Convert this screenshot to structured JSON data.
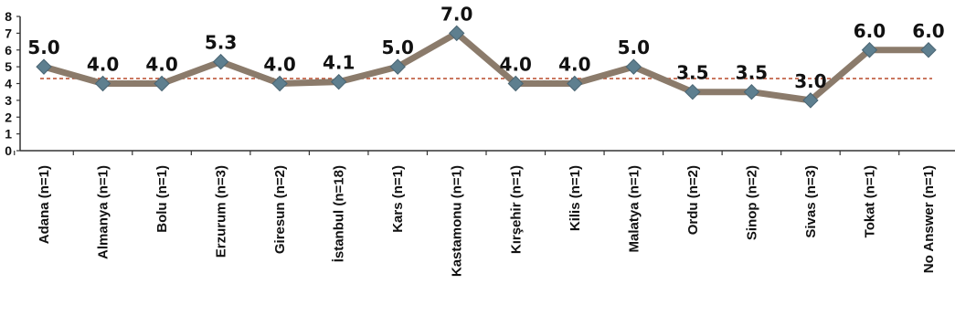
{
  "chart_data": {
    "type": "line",
    "categories": [
      "Adana (n=1)",
      "Almanya (n=1)",
      "Bolu (n=1)",
      "Erzurum (n=3)",
      "Giresun (n=2)",
      "İstanbul (n=18)",
      "Kars (n=1)",
      "Kastamonu (n=1)",
      "Kırşehir (n=1)",
      "Kilis (n=1)",
      "Malatya (n=1)",
      "Ordu (n=2)",
      "Sinop (n=2)",
      "Sivas (n=3)",
      "Tokat (n=1)",
      "No Answer (n=1)"
    ],
    "series": [
      {
        "values": [
          5.0,
          4.0,
          4.0,
          5.3,
          4.0,
          4.1,
          5.0,
          7.0,
          4.0,
          4.0,
          5.0,
          3.5,
          3.5,
          3.0,
          6.0,
          6.0
        ]
      }
    ],
    "data_labels": [
      "5.0",
      "4.0",
      "4.0",
      "5.3",
      "4.0",
      "4.1",
      "5.0",
      "7.0",
      "4.0",
      "4.0",
      "5.0",
      "3.5",
      "3.5",
      "3.0",
      "6.0",
      "6.0"
    ],
    "reference_line": 4.3,
    "yticks": [
      "0",
      "1",
      "2",
      "3",
      "4",
      "5",
      "6",
      "7",
      "8"
    ],
    "ylim": [
      0,
      8
    ],
    "title": "",
    "xlabel": "",
    "ylabel": "",
    "grid": false,
    "legend": "none",
    "colors": {
      "line": "#8b7b6b",
      "marker": "#5e7f8f",
      "reference": "#b84a2a",
      "axis": "#333333"
    }
  }
}
